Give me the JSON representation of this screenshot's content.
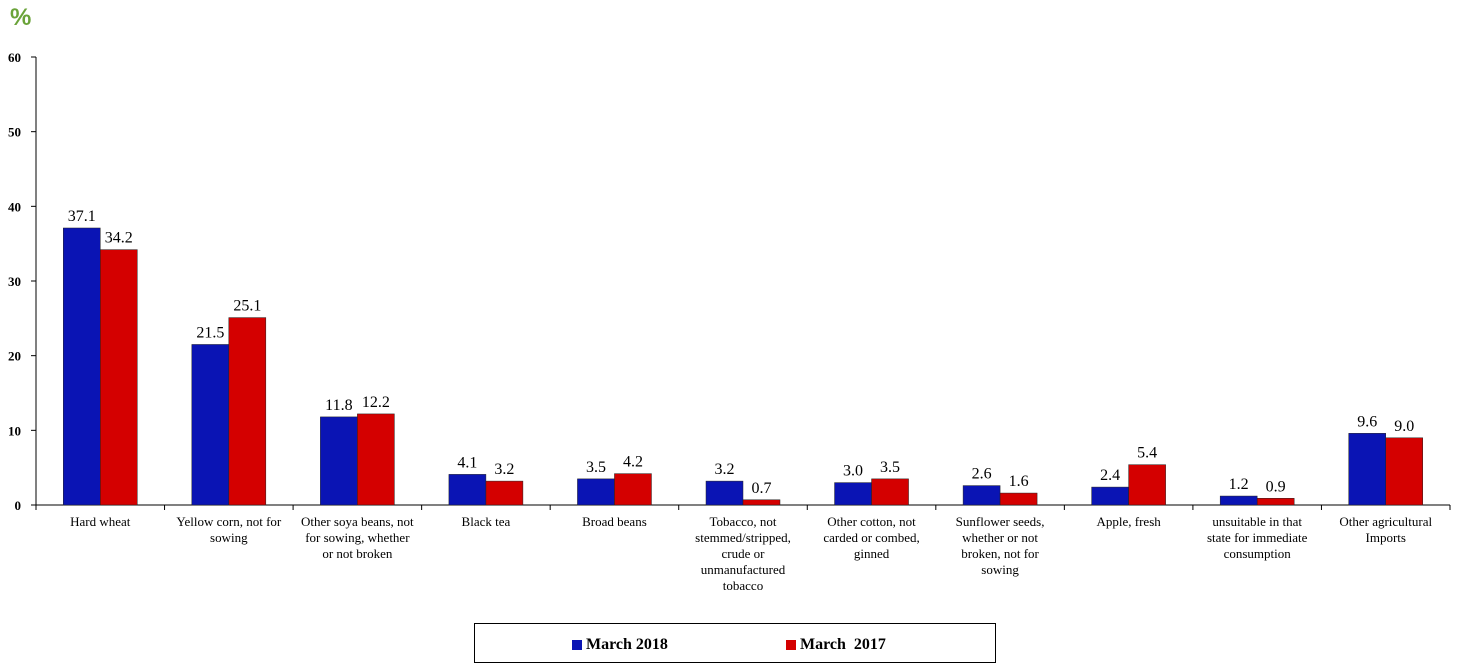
{
  "unit_label": "%",
  "colors": {
    "series_2018": "#0a14b4",
    "series_2017": "#d40000"
  },
  "chart_data": {
    "type": "bar",
    "title": "",
    "xlabel": "",
    "ylabel": "%",
    "ylim": [
      0,
      60
    ],
    "yticks": [
      0,
      10,
      20,
      30,
      40,
      50,
      60
    ],
    "grid": false,
    "legend_position": "bottom",
    "categories": [
      "Hard wheat",
      "Yellow corn, not for sowing",
      "Other soya beans, not for sowing, whether or not broken",
      "Black tea",
      "Broad beans",
      "Tobacco, not stemmed/stripped, crude or unmanufactured tobacco",
      "Other cotton, not carded or combed, ginned",
      "Sunflower seeds, whether or not broken, not for sowing",
      "Apple, fresh",
      "unsuitable in that state for immediate consumption",
      "Other agricultural Imports"
    ],
    "category_lines": [
      [
        "Hard wheat"
      ],
      [
        "Yellow corn, not for",
        "sowing"
      ],
      [
        "Other soya beans, not",
        "for sowing, whether",
        "or not broken"
      ],
      [
        "Black tea"
      ],
      [
        "Broad beans"
      ],
      [
        "Tobacco, not",
        "stemmed/stripped,",
        "crude or",
        "unmanufactured",
        "tobacco"
      ],
      [
        "Other cotton, not",
        "carded or combed,",
        "ginned"
      ],
      [
        "Sunflower seeds,",
        "whether or not",
        "broken, not for",
        "sowing"
      ],
      [
        "Apple, fresh"
      ],
      [
        "unsuitable in that",
        "state for immediate",
        "consumption"
      ],
      [
        "Other agricultural",
        "Imports"
      ]
    ],
    "series": [
      {
        "name": "March 2018",
        "values": [
          37.1,
          21.5,
          11.8,
          4.1,
          3.5,
          3.2,
          3.0,
          2.6,
          2.4,
          1.2,
          9.6
        ]
      },
      {
        "name": "March  2017",
        "values": [
          34.2,
          25.1,
          12.2,
          3.2,
          4.2,
          0.7,
          3.5,
          1.6,
          5.4,
          0.9,
          9.0
        ]
      }
    ]
  }
}
